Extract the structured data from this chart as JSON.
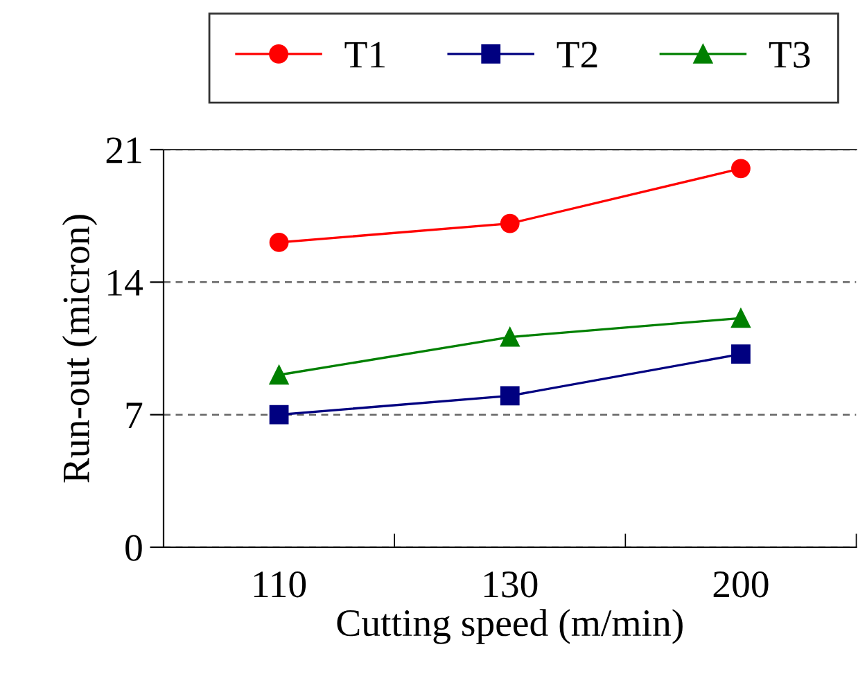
{
  "chart_data": {
    "type": "line",
    "xlabel": "Cutting speed (m/min)",
    "ylabel": "Run-out (micron)",
    "categories": [
      "110",
      "130",
      "200"
    ],
    "series": [
      {
        "name": "T1",
        "color": "#ff0000",
        "marker": "circle",
        "values": [
          16.1,
          17.1,
          20.0
        ]
      },
      {
        "name": "T2",
        "color": "#000080",
        "marker": "square",
        "values": [
          7.0,
          8.0,
          10.2
        ]
      },
      {
        "name": "T3",
        "color": "#008000",
        "marker": "triangle",
        "values": [
          9.1,
          11.1,
          12.1
        ]
      }
    ],
    "ylim": [
      0,
      21
    ],
    "yticks": [
      0,
      7,
      14,
      21
    ],
    "grid": "y",
    "legend": "top",
    "line_style": "solid"
  }
}
